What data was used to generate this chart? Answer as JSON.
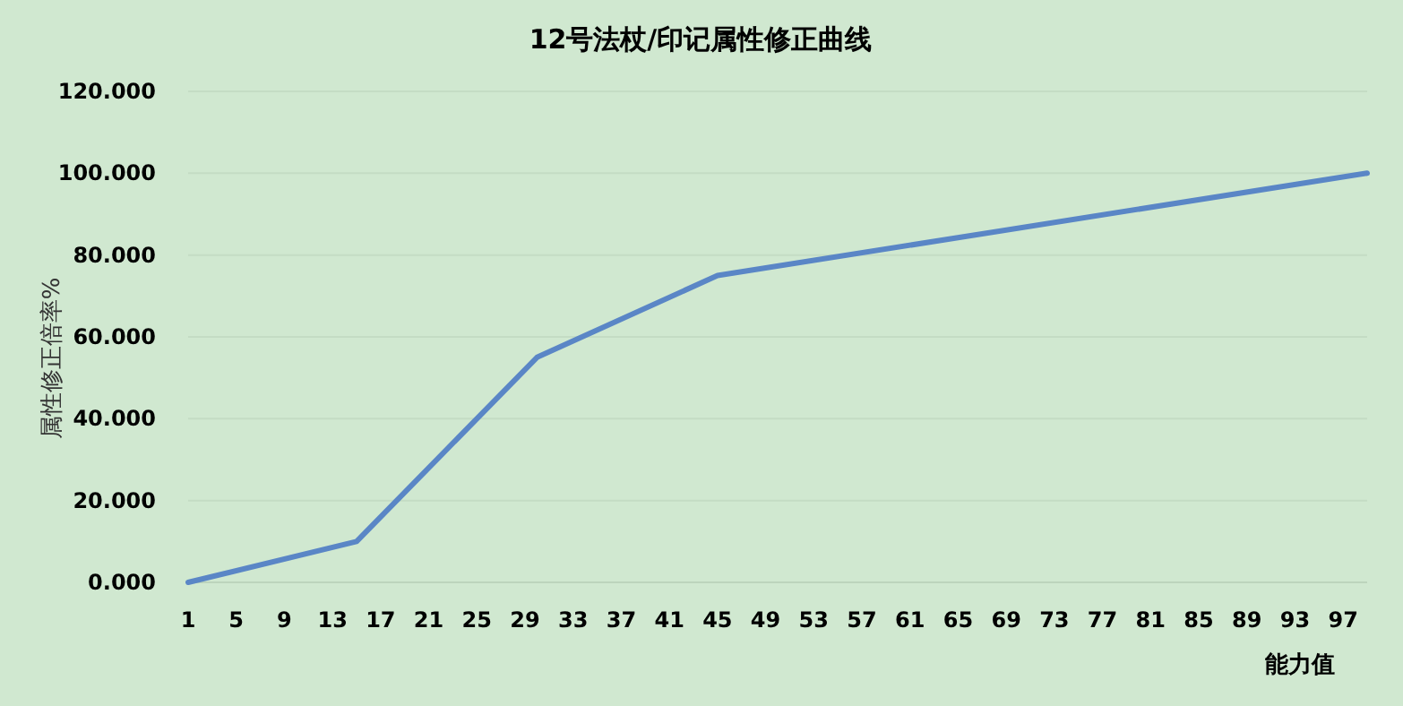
{
  "chart_data": {
    "type": "line",
    "title": "12号法杖/印记属性修正曲线",
    "xlabel": "能力值",
    "ylabel": "属性修正倍率%",
    "x": [
      1,
      15,
      30,
      45,
      99
    ],
    "series": [
      {
        "color": "#5a86c6",
        "values": [
          0,
          10,
          55,
          75,
          100
        ]
      }
    ],
    "xlim": [
      1,
      99
    ],
    "xticks": [
      1,
      5,
      9,
      13,
      17,
      21,
      25,
      29,
      33,
      37,
      41,
      45,
      49,
      53,
      57,
      61,
      65,
      69,
      73,
      77,
      81,
      85,
      89,
      93,
      97
    ],
    "ylim": [
      0,
      120
    ],
    "yticks": [
      {
        "value": 0,
        "label": "0.000"
      },
      {
        "value": 20,
        "label": "20.000"
      },
      {
        "value": 40,
        "label": "40.000"
      },
      {
        "value": 60,
        "label": "60.000"
      },
      {
        "value": 80,
        "label": "80.000"
      },
      {
        "value": 100,
        "label": "100.000"
      },
      {
        "value": 120,
        "label": "120.000"
      }
    ],
    "grid": "y",
    "marker": "none",
    "line_style": "solid"
  }
}
